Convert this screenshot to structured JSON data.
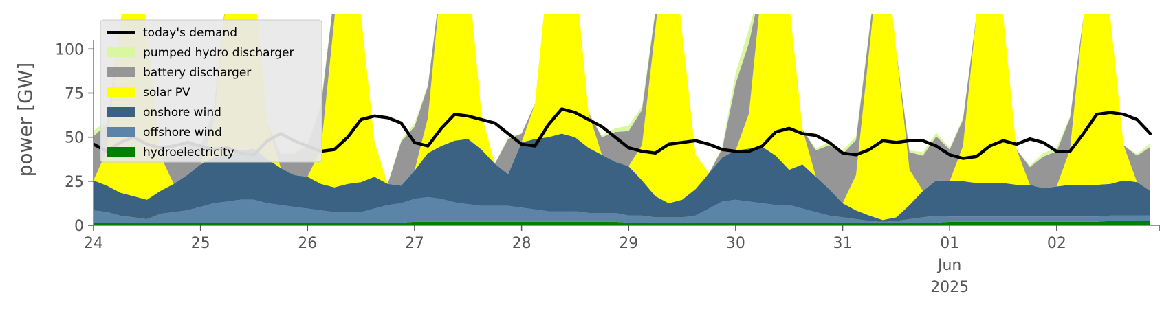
{
  "chart_data": {
    "type": "area",
    "ylabel": "power [GW]",
    "ylim": [
      0,
      120
    ],
    "yticks": [
      0,
      25,
      50,
      75,
      100
    ],
    "xlim": [
      "2025-05-24T00:00",
      "2025-06-02T23:00"
    ],
    "x_step_hours": 3,
    "xtick_labels": [
      {
        "date": "2025-05-24",
        "label": "24",
        "sub": [
          "",
          ""
        ]
      },
      {
        "date": "2025-05-25",
        "label": "25",
        "sub": [
          "",
          ""
        ]
      },
      {
        "date": "2025-05-26",
        "label": "26",
        "sub": [
          "",
          ""
        ]
      },
      {
        "date": "2025-05-27",
        "label": "27",
        "sub": [
          "",
          ""
        ]
      },
      {
        "date": "2025-05-28",
        "label": "28",
        "sub": [
          "",
          ""
        ]
      },
      {
        "date": "2025-05-29",
        "label": "29",
        "sub": [
          "",
          ""
        ]
      },
      {
        "date": "2025-05-30",
        "label": "30",
        "sub": [
          "",
          ""
        ]
      },
      {
        "date": "2025-05-31",
        "label": "31",
        "sub": [
          "",
          ""
        ]
      },
      {
        "date": "2025-06-01",
        "label": "01",
        "sub": [
          "Jun",
          "2025"
        ]
      },
      {
        "date": "2025-06-02",
        "label": "02",
        "sub": [
          "",
          ""
        ]
      }
    ],
    "grid": false,
    "legend_position": "top-left",
    "stacked_series": [
      {
        "name": "hydroelectricity",
        "color": "#008000",
        "values": [
          1.5,
          1.5,
          1.5,
          1.5,
          1.5,
          1.5,
          1.5,
          1.5,
          1.5,
          1.5,
          1.5,
          1.5,
          1.5,
          1.5,
          1.5,
          1.5,
          1.5,
          1.5,
          1.5,
          1.5,
          1.5,
          1.5,
          1.5,
          1.5,
          2,
          2,
          2,
          2,
          2,
          2,
          2,
          2,
          2,
          2,
          2,
          2,
          2,
          2,
          2,
          2,
          1.5,
          1.5,
          1.5,
          1.5,
          1.5,
          1.5,
          1.5,
          1.5,
          1.5,
          1.5,
          1.5,
          1.5,
          1.5,
          1.5,
          1.5,
          1.5,
          1.5,
          1.5,
          1.5,
          1.5,
          1.5,
          1.5,
          1.5,
          1.5,
          2,
          2,
          2,
          2,
          2,
          2,
          2,
          2,
          2,
          2,
          2,
          2,
          2.5,
          2.5,
          2.5,
          2.5
        ]
      },
      {
        "name": "offshore wind",
        "color": "#5b84a8",
        "values": [
          7,
          6,
          4,
          3,
          2,
          5,
          6,
          7,
          9,
          11,
          12,
          13,
          13,
          11,
          10,
          9,
          8,
          7,
          6,
          6,
          6,
          8,
          10,
          11,
          13,
          14,
          13,
          11,
          10,
          9,
          9,
          9,
          8,
          7,
          6,
          6,
          6,
          5,
          5,
          5,
          4,
          4,
          3,
          3,
          3,
          4,
          8,
          12,
          13,
          12,
          11,
          10,
          10,
          8,
          6,
          4,
          3,
          2,
          1,
          0.5,
          1,
          2,
          3,
          4,
          3,
          3,
          3,
          3,
          3,
          3,
          3,
          3,
          3,
          3,
          3,
          3,
          3,
          3,
          3,
          3
        ]
      },
      {
        "name": "onshore wind",
        "color": "#3b6282",
        "values": [
          17,
          15,
          13,
          12,
          11,
          13,
          16,
          20,
          24,
          26,
          27,
          28,
          29,
          25,
          21,
          18,
          18,
          15,
          14,
          16,
          17,
          18,
          12,
          10,
          16,
          25,
          30,
          35,
          37,
          32,
          24,
          18,
          37,
          40,
          42,
          44,
          42,
          37,
          33,
          29,
          28,
          20,
          12,
          8,
          10,
          15,
          20,
          25,
          28,
          30,
          32,
          28,
          20,
          25,
          20,
          15,
          8,
          5,
          3,
          1,
          2,
          8,
          15,
          20,
          20,
          20,
          19,
          19,
          19,
          18,
          18,
          16,
          17,
          18,
          18,
          18,
          18,
          20,
          19,
          14
        ]
      },
      {
        "name": "solar PV",
        "color": "#ffff00",
        "values": [
          0,
          20,
          95,
          170,
          95,
          20,
          0,
          0,
          0,
          20,
          95,
          170,
          95,
          20,
          0,
          0,
          0,
          20,
          95,
          170,
          95,
          20,
          0,
          0,
          0,
          20,
          95,
          170,
          95,
          20,
          0,
          0,
          0,
          20,
          95,
          170,
          95,
          20,
          0,
          0,
          0,
          20,
          95,
          170,
          95,
          20,
          0,
          0,
          0,
          20,
          95,
          170,
          95,
          20,
          0,
          0,
          0,
          20,
          95,
          170,
          95,
          20,
          0,
          0,
          0,
          20,
          95,
          170,
          95,
          20,
          0,
          0,
          0,
          20,
          95,
          170,
          95,
          20,
          0,
          0
        ]
      },
      {
        "name": "battery discharger",
        "color": "#969696",
        "values": [
          25,
          15,
          0,
          0,
          0,
          0,
          15,
          20,
          10,
          8,
          0,
          0,
          0,
          0,
          8,
          12,
          18,
          24,
          15,
          10,
          0,
          0,
          0,
          25,
          25,
          18,
          0,
          0,
          0,
          0,
          0,
          20,
          5,
          0,
          0,
          0,
          0,
          0,
          10,
          17,
          20,
          20,
          10,
          0,
          0,
          0,
          0,
          5,
          38,
          40,
          0,
          0,
          0,
          0,
          15,
          25,
          28,
          20,
          10,
          0,
          0,
          10,
          20,
          25,
          18,
          15,
          0,
          0,
          0,
          0,
          10,
          18,
          20,
          18,
          0,
          0,
          0,
          0,
          15,
          25
        ]
      },
      {
        "name": "pumped hydro discharger",
        "color": "#d9f7a1",
        "values": [
          3,
          2,
          0,
          0,
          0,
          0,
          1,
          1,
          1,
          1,
          0,
          0,
          0,
          0,
          1,
          1,
          2,
          2,
          1,
          1,
          0,
          0,
          0,
          1,
          2,
          1,
          0,
          0,
          0,
          0,
          0,
          1,
          0,
          0,
          0,
          0,
          0,
          0,
          1,
          2,
          3,
          2,
          1,
          0,
          0,
          0,
          0,
          1,
          6,
          8,
          0,
          0,
          0,
          0,
          1,
          2,
          2,
          2,
          1,
          0,
          0,
          1,
          2,
          2,
          1,
          1,
          0,
          0,
          0,
          0,
          1,
          2,
          2,
          1,
          0,
          0,
          0,
          0,
          1,
          2
        ]
      }
    ],
    "line_series": [
      {
        "name": "today's demand",
        "color": "#000000",
        "values": [
          46,
          42,
          47,
          50,
          46,
          44,
          45,
          47,
          45,
          43,
          44,
          41,
          40,
          48,
          52,
          48,
          45,
          42,
          43,
          50,
          60,
          62,
          61,
          58,
          47,
          45,
          55,
          63,
          62,
          60,
          58,
          52,
          46,
          45,
          57,
          66,
          64,
          60,
          56,
          50,
          44,
          42,
          41,
          46,
          47,
          48,
          46,
          43,
          42,
          42,
          45,
          53,
          55,
          52,
          51,
          47,
          41,
          40,
          43,
          48,
          47,
          48,
          48,
          45,
          40,
          38,
          39,
          45,
          48,
          46,
          49,
          47,
          42,
          42,
          52,
          63,
          64,
          63,
          60,
          52
        ]
      }
    ],
    "legend_order": [
      "today's demand",
      "pumped hydro discharger",
      "battery discharger",
      "solar PV",
      "onshore wind",
      "offshore wind",
      "hydroelectricity"
    ]
  }
}
